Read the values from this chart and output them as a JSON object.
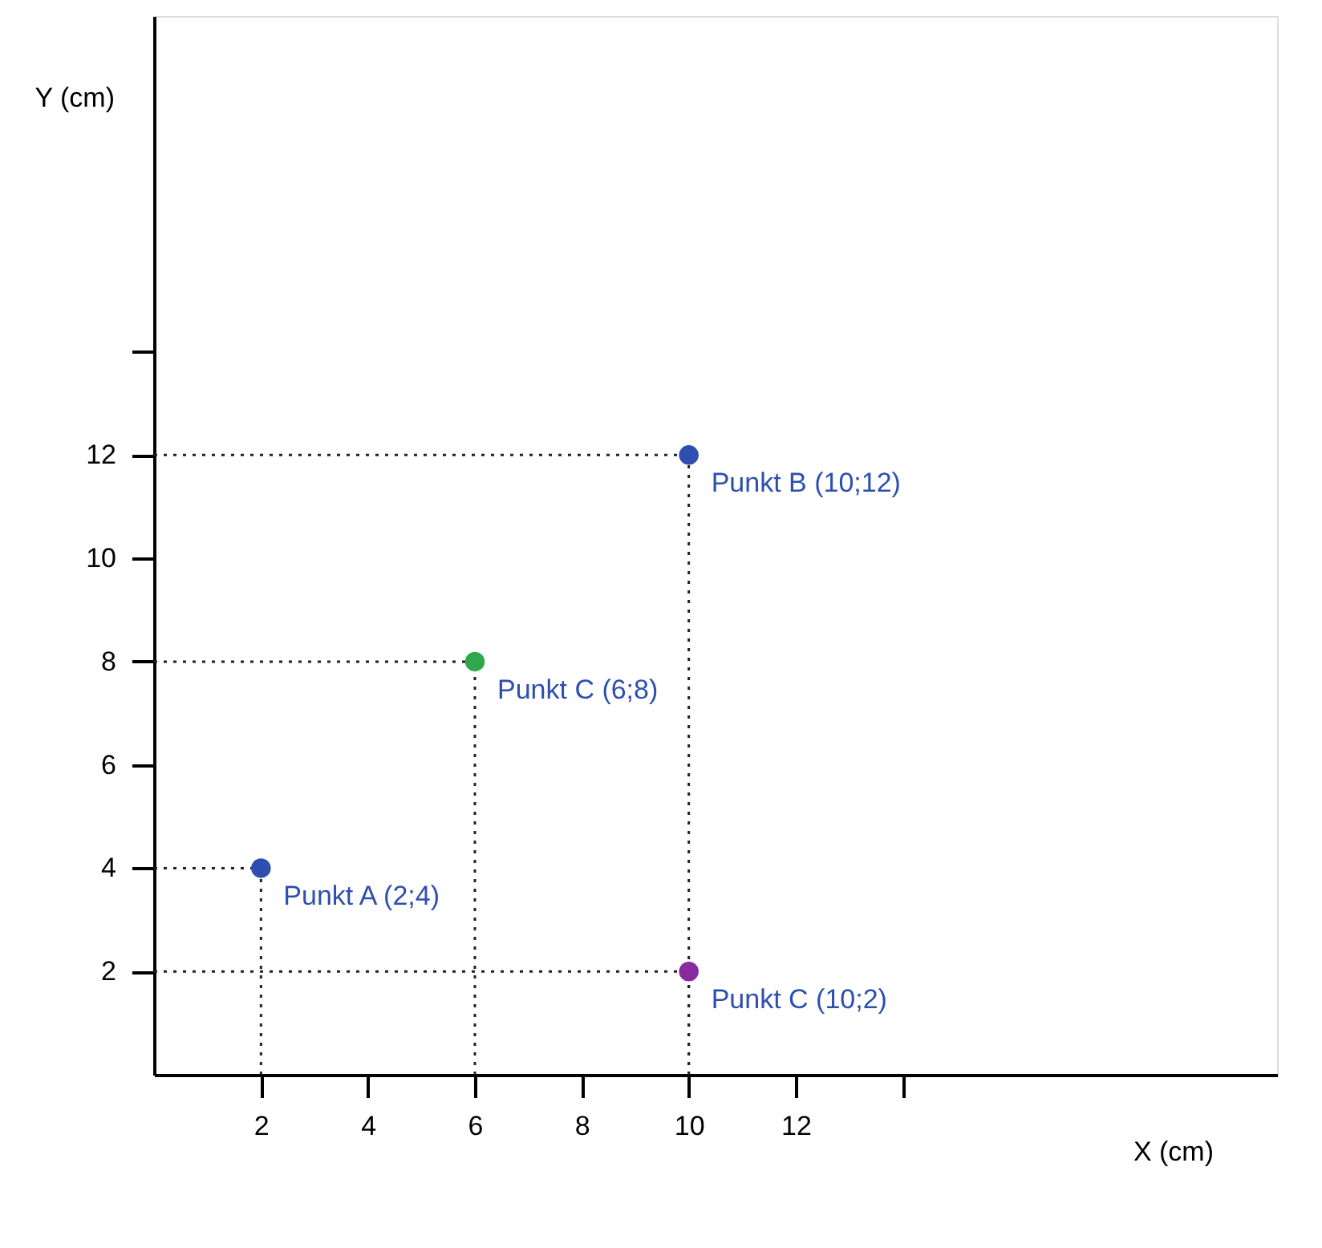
{
  "chart_data": {
    "type": "scatter",
    "xlabel": "X (cm)",
    "ylabel": "Y (cm)",
    "x": [
      2,
      10,
      6,
      10
    ],
    "series": [
      {
        "values": [
          4,
          12,
          8,
          2
        ],
        "colors": [
          "#2e4fb0",
          "#2e4fb0",
          "#2ea84a",
          "#8a2aa0"
        ]
      }
    ],
    "xlim": [
      0,
      21
    ],
    "ylim": [
      0,
      20.5
    ],
    "xticks": [
      2,
      4,
      6,
      8,
      10,
      12,
      {
        "value": 14,
        "label": null
      }
    ],
    "yticks": [
      2,
      4,
      6,
      8,
      10,
      12,
      {
        "value": 14,
        "label": null
      }
    ],
    "annotations": [
      {
        "text": "Punkt A (2;4)",
        "x": 2,
        "y": 4
      },
      {
        "text": "Punkt B (10;12)",
        "x": 10,
        "y": 12
      },
      {
        "text": "Punkt C (6;8)",
        "x": 6,
        "y": 8
      },
      {
        "text": "Punkt C (10;2)",
        "x": 10,
        "y": 2
      }
    ],
    "grid": false,
    "marker": "circle"
  }
}
